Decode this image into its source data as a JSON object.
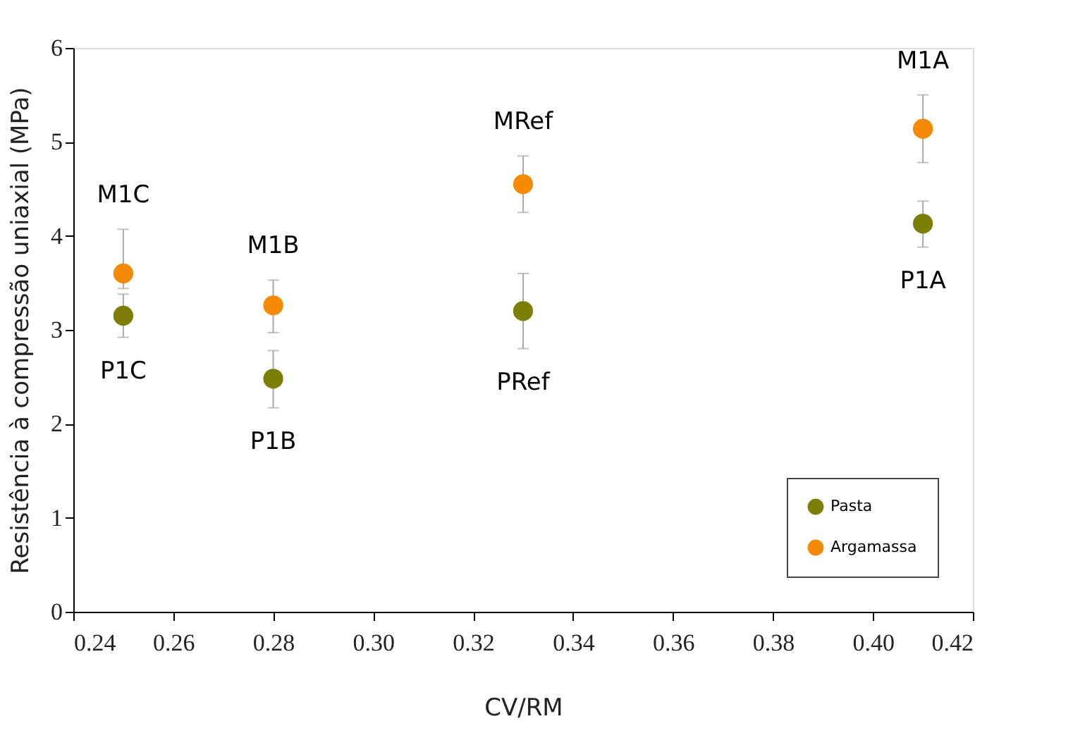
{
  "chart_data": {
    "type": "scatter",
    "xlabel": "CV/RM",
    "ylabel": "Resistência à compressão uniaxial (MPa)",
    "xlim": [
      0.24,
      0.42
    ],
    "xticks": [
      {
        "value": 0.24,
        "label": "0.24"
      },
      {
        "value": 0.26,
        "label": "0.26"
      },
      {
        "value": 0.28,
        "label": "0.28"
      },
      {
        "value": 0.3,
        "label": "0.30"
      },
      {
        "value": 0.32,
        "label": "0.32"
      },
      {
        "value": 0.34,
        "label": "0.34"
      },
      {
        "value": 0.36,
        "label": "0.36"
      },
      {
        "value": 0.38,
        "label": "0.38"
      },
      {
        "value": 0.4,
        "label": "0.40"
      },
      {
        "value": 0.42,
        "label": "0.42"
      }
    ],
    "ylim": [
      0,
      6
    ],
    "yticks": [
      0,
      1,
      2,
      3,
      4,
      5,
      6
    ],
    "series": [
      {
        "name": "Pasta",
        "color": "#7b7f05",
        "x": [
          0.25,
          0.28,
          0.33,
          0.41
        ],
        "values": [
          3.15,
          2.48,
          3.2,
          4.13
        ],
        "errors": [
          [
            2.92,
            3.38
          ],
          [
            2.17,
            2.78
          ],
          [
            2.8,
            3.6
          ],
          [
            3.88,
            4.37
          ]
        ]
      },
      {
        "name": "Argamassa",
        "color": "#f58a07",
        "x": [
          0.25,
          0.28,
          0.33,
          0.41
        ],
        "values": [
          3.6,
          3.26,
          4.55,
          5.14
        ],
        "errors": [
          [
            3.44,
            4.07
          ],
          [
            2.97,
            3.53
          ],
          [
            4.25,
            4.85
          ],
          [
            4.78,
            5.5
          ]
        ]
      }
    ],
    "annotations": [
      {
        "text": "M1C",
        "x": 0.25,
        "y": 3.6
      },
      {
        "text": "P1C",
        "x": 0.25,
        "y": 3.15
      },
      {
        "text": "M1B",
        "x": 0.28,
        "y": 3.26
      },
      {
        "text": "P1B",
        "x": 0.28,
        "y": 2.48
      },
      {
        "text": "MRef",
        "x": 0.33,
        "y": 4.55
      },
      {
        "text": "PRef",
        "x": 0.33,
        "y": 3.2
      },
      {
        "text": "M1A",
        "x": 0.41,
        "y": 5.14
      },
      {
        "text": "P1A",
        "x": 0.41,
        "y": 4.13
      }
    ],
    "legend": "bottom right",
    "grid": false,
    "marker": "circle"
  }
}
